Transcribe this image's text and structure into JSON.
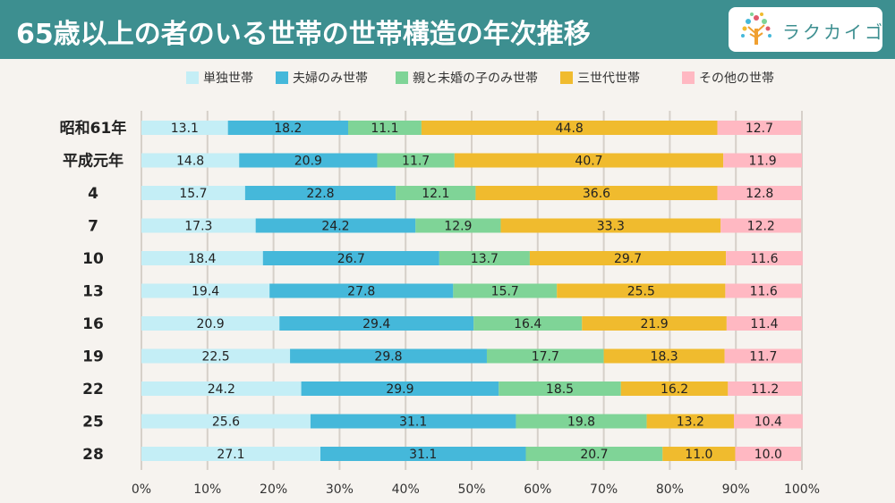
{
  "header": {
    "title": "65歳以上の者のいる世帯の世帯構造の年次推移"
  },
  "logo": {
    "text": "ラクカイゴ",
    "icon": "tree-logo-icon"
  },
  "chart_data": {
    "type": "bar",
    "orientation": "horizontal",
    "stacked": true,
    "categories": [
      "昭和61年",
      "平成元年",
      "4",
      "7",
      "10",
      "13",
      "16",
      "19",
      "22",
      "25",
      "28"
    ],
    "series": [
      {
        "name": "単独世帯",
        "color": "#c4eef6",
        "values": [
          13.1,
          14.8,
          15.7,
          17.3,
          18.4,
          19.4,
          20.9,
          22.5,
          24.2,
          25.6,
          27.1
        ]
      },
      {
        "name": "夫婦のみ世帯",
        "color": "#45b8da",
        "values": [
          18.2,
          20.9,
          22.8,
          24.2,
          26.7,
          27.8,
          29.4,
          29.8,
          29.9,
          31.1,
          31.1
        ]
      },
      {
        "name": "親と未婚の子のみ世帯",
        "color": "#7fd497",
        "values": [
          11.1,
          11.7,
          12.1,
          12.9,
          13.7,
          15.7,
          16.4,
          17.7,
          18.5,
          19.8,
          20.7
        ]
      },
      {
        "name": "三世代世帯",
        "color": "#f0bb2e",
        "values": [
          44.8,
          40.7,
          36.6,
          33.3,
          29.7,
          25.5,
          21.9,
          18.3,
          16.2,
          13.2,
          11.0
        ]
      },
      {
        "name": "その他の世帯",
        "color": "#ffb8c2",
        "values": [
          12.7,
          11.9,
          12.8,
          12.2,
          11.6,
          11.6,
          11.4,
          11.7,
          11.2,
          10.4,
          10.0
        ]
      }
    ],
    "xticks": [
      "0%",
      "10%",
      "20%",
      "30%",
      "40%",
      "50%",
      "60%",
      "70%",
      "80%",
      "90%",
      "100%"
    ],
    "xlim": [
      0,
      100
    ],
    "grid": true,
    "legend": "top"
  }
}
